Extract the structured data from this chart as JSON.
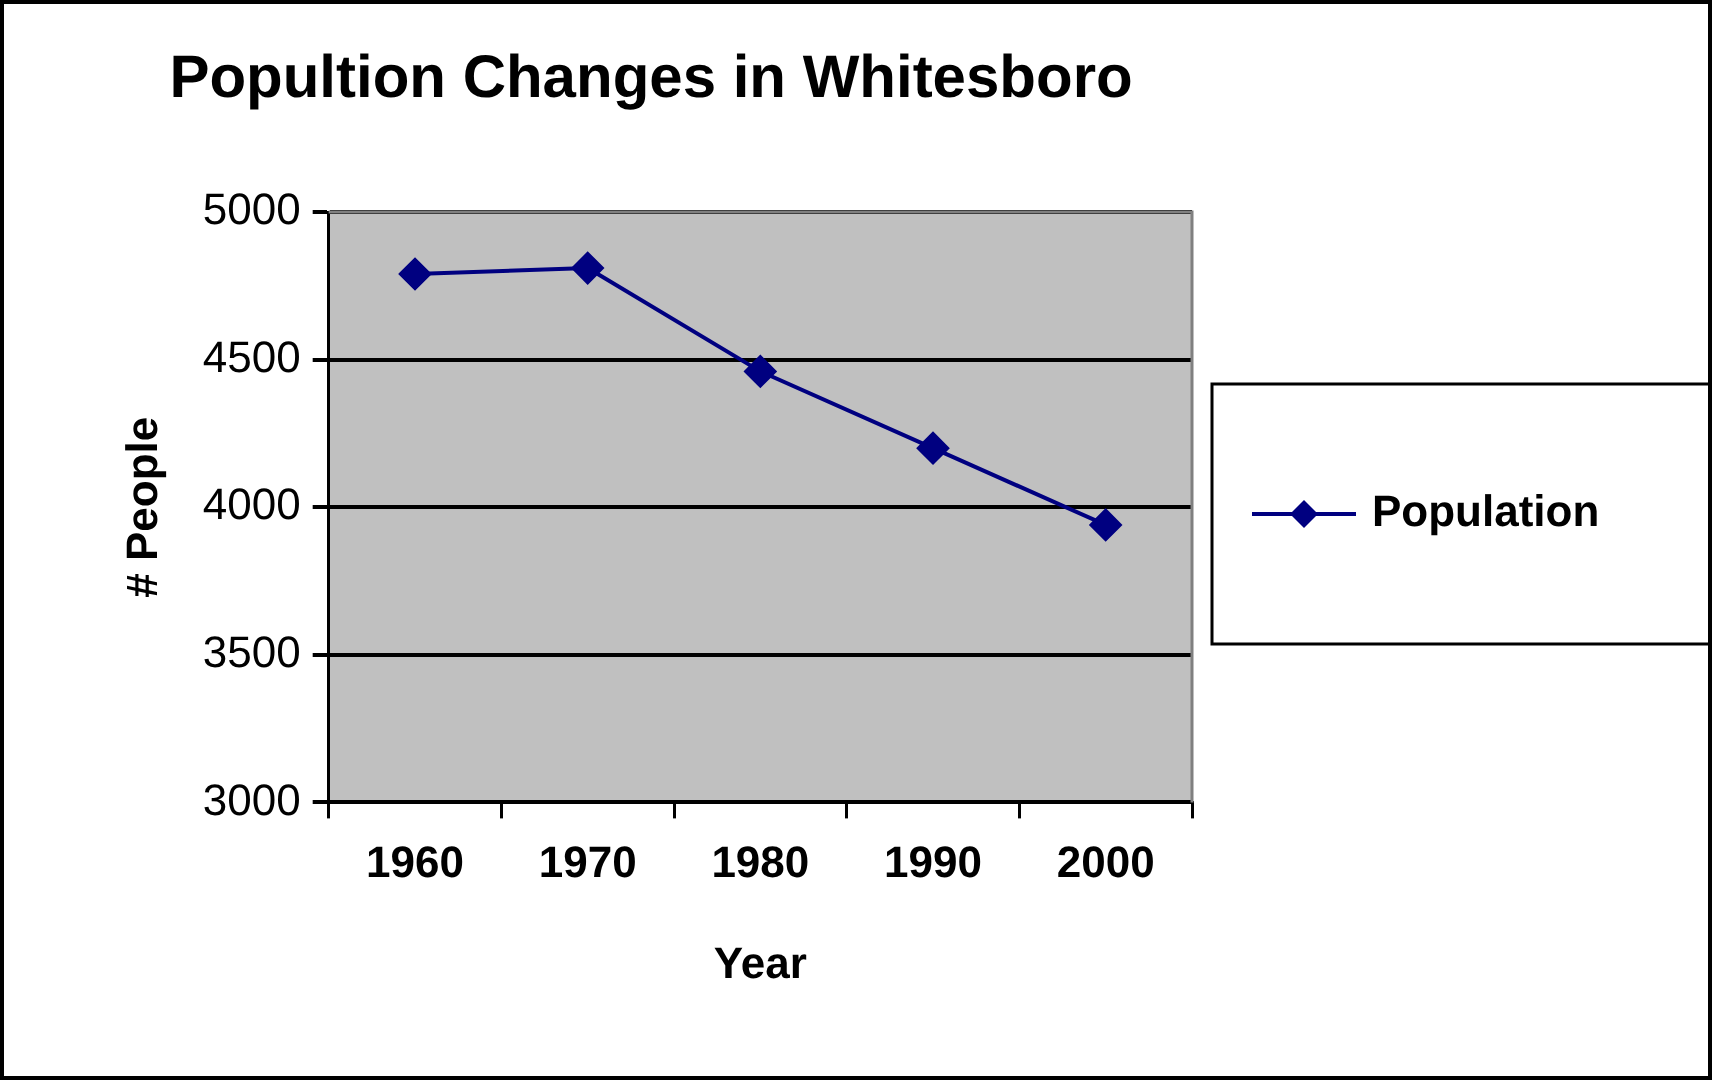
{
  "chart_data": {
    "type": "line",
    "title": "Popultion Changes in Whitesboro",
    "xlabel": "Year",
    "ylabel": "# People",
    "categories": [
      "1960",
      "1970",
      "1980",
      "1990",
      "2000"
    ],
    "series": [
      {
        "name": "Population",
        "color": "#000080",
        "values": [
          4790,
          4810,
          4460,
          4200,
          3940
        ]
      }
    ],
    "ylim": [
      3000,
      5000
    ],
    "yticks": [
      3000,
      3500,
      4000,
      4500,
      5000
    ],
    "grid": "y",
    "legend": "right",
    "marker": "diamond",
    "line_style": "solid"
  }
}
